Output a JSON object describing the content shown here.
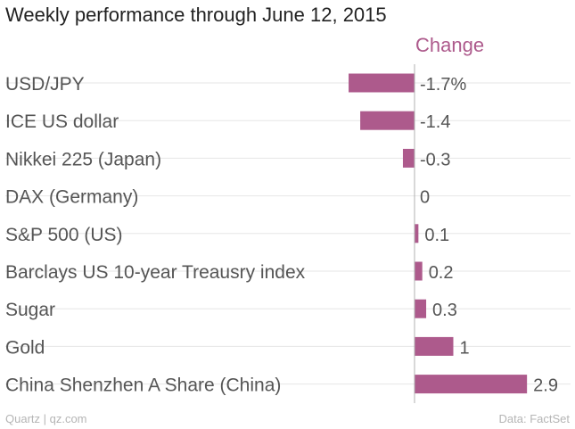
{
  "chart_data": {
    "type": "bar",
    "orientation": "horizontal",
    "title": "Weekly performance through June 12, 2015",
    "series": [
      {
        "name": "Change",
        "color": "#ad5a8c"
      }
    ],
    "categories": [
      "USD/JPY",
      "ICE US dollar",
      "Nikkei 225 (Japan)",
      "DAX (Germany)",
      "S&P 500 (US)",
      "Barclays US 10-year Treausry index",
      "Sugar",
      "Gold",
      "China Shenzhen A Share (China)"
    ],
    "values": [
      -1.7,
      -1.4,
      -0.3,
      0,
      0.1,
      0.2,
      0.3,
      1,
      2.9
    ],
    "value_labels": [
      "-1.7%",
      "-1.4",
      "-0.3",
      "0",
      "0.1",
      "0.2",
      "0.3",
      "1",
      "2.9"
    ],
    "xlim": [
      -2,
      3
    ],
    "grid": true,
    "colors": {
      "bar": "#ad5a8c",
      "header": "#ad5a8c",
      "grid": "#e6e6e6",
      "axis": "#b0b0b0",
      "label": "#555555",
      "title": "#222222",
      "footer": "#b5b5b5"
    }
  },
  "footer": {
    "source": "Quartz | qz.com",
    "credit": "Data: FactSet"
  }
}
